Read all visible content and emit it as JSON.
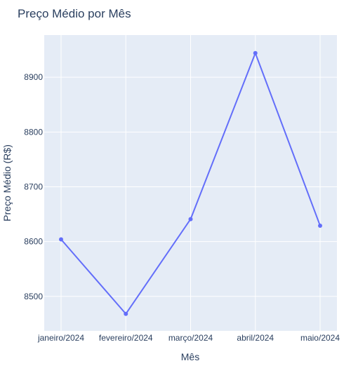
{
  "chart_data": {
    "type": "line",
    "title": "Preço Médio por Mês",
    "xlabel": "Mês",
    "ylabel": "Preço Médio (R$)",
    "categories": [
      "janeiro/2024",
      "fevereiro/2024",
      "março/2024",
      "abril/2024",
      "maio/2024"
    ],
    "series": [
      {
        "name": "",
        "values": [
          8604,
          8468,
          8641,
          8944,
          8629
        ]
      }
    ],
    "ylim": [
      8437,
      8977
    ],
    "yticks": [
      8500,
      8600,
      8700,
      8800,
      8900
    ],
    "grid": true,
    "legend": "none",
    "colors": {
      "line": "#636efa",
      "plot_bg": "#e5ecf6",
      "grid": "#ffffff",
      "text": "#2a3f5f"
    }
  }
}
